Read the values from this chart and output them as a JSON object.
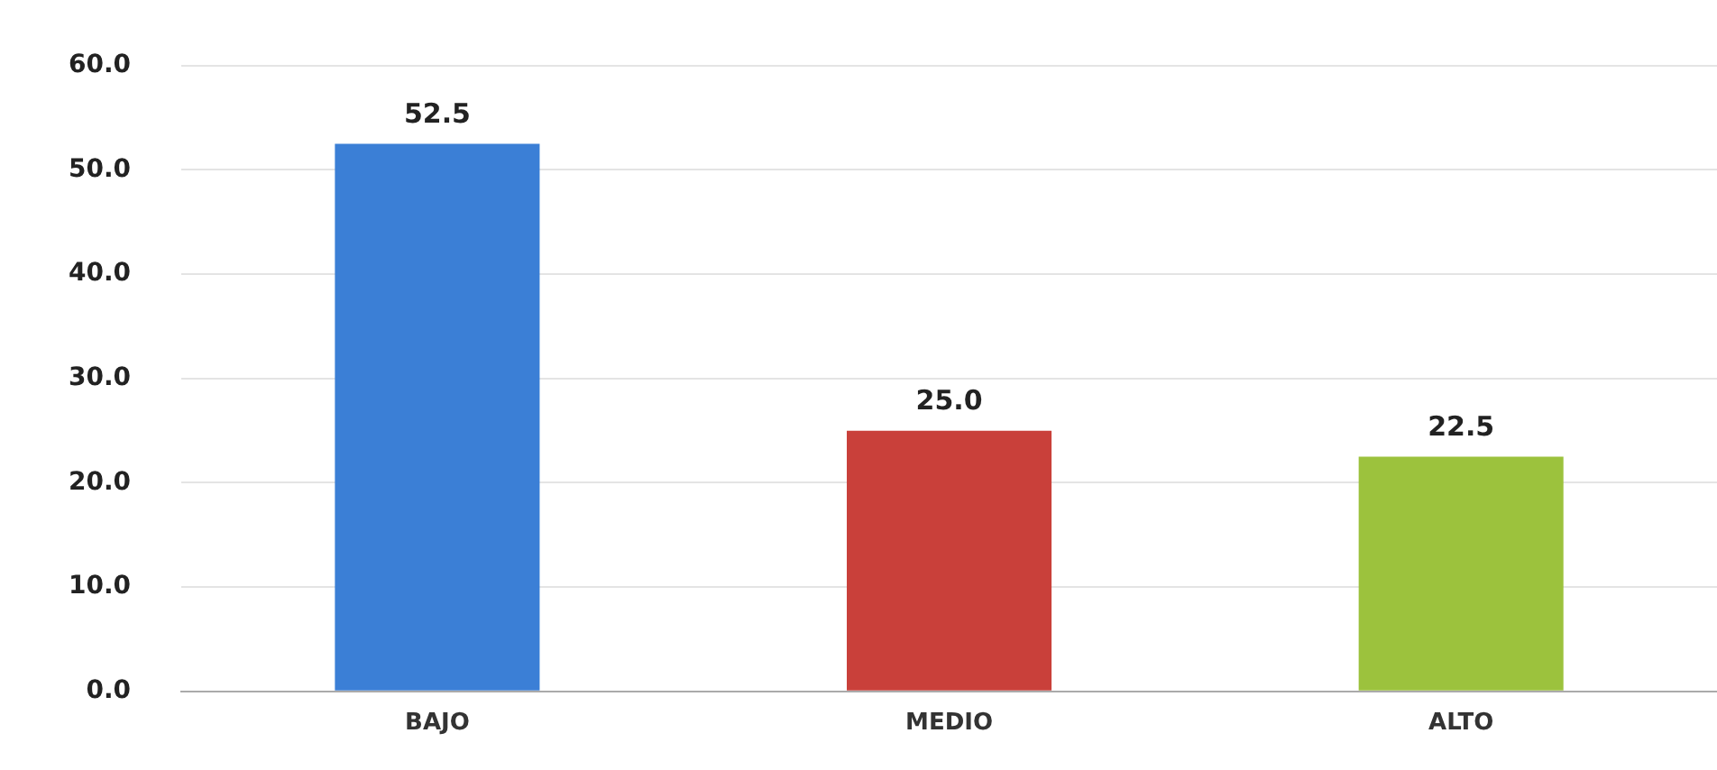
{
  "chart_data": {
    "type": "bar",
    "categories": [
      "BAJO",
      "MEDIO",
      "ALTO"
    ],
    "values": [
      52.5,
      25.0,
      22.5
    ],
    "colors": [
      "#3b7fd6",
      "#c9403a",
      "#9cc23d"
    ],
    "ylim": [
      0,
      60
    ],
    "yticks": [
      {
        "value": 0,
        "label": "0.0"
      },
      {
        "value": 10,
        "label": "10.0"
      },
      {
        "value": 20,
        "label": "20.0"
      },
      {
        "value": 30,
        "label": "30.0"
      },
      {
        "value": 40,
        "label": "40.0"
      },
      {
        "value": 50,
        "label": "50.0"
      },
      {
        "value": 60,
        "label": "60.0"
      }
    ],
    "value_labels": [
      "52.5",
      "25.0",
      "22.5"
    ],
    "grid": "y",
    "legend": false
  }
}
